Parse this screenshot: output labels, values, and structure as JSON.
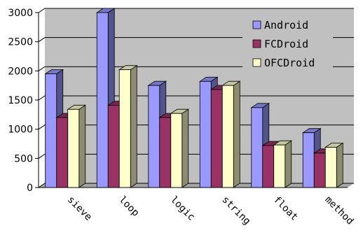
{
  "chart_data": {
    "type": "bar",
    "title": "",
    "xlabel": "",
    "ylabel": "",
    "categories": [
      "sieve",
      "loop",
      "logic",
      "string",
      "float",
      "method"
    ],
    "series": [
      {
        "name": "Android",
        "values": [
          1950,
          3000,
          1750,
          1820,
          1370,
          940
        ],
        "color": "#9999ff"
      },
      {
        "name": "FCDroid",
        "values": [
          1200,
          1410,
          1200,
          1680,
          720,
          590
        ],
        "color": "#993366"
      },
      {
        "name": "OFCDroid",
        "values": [
          1340,
          2020,
          1270,
          1750,
          730,
          690
        ],
        "color": "#ffffcc"
      }
    ],
    "ylim": [
      0,
      3000
    ],
    "yticks": [
      0,
      500,
      1000,
      1500,
      2000,
      2500,
      3000
    ],
    "grid": true,
    "legend_position": "top-right",
    "colors": {
      "wall": "#c0c0c0",
      "grid": "#000000"
    }
  }
}
